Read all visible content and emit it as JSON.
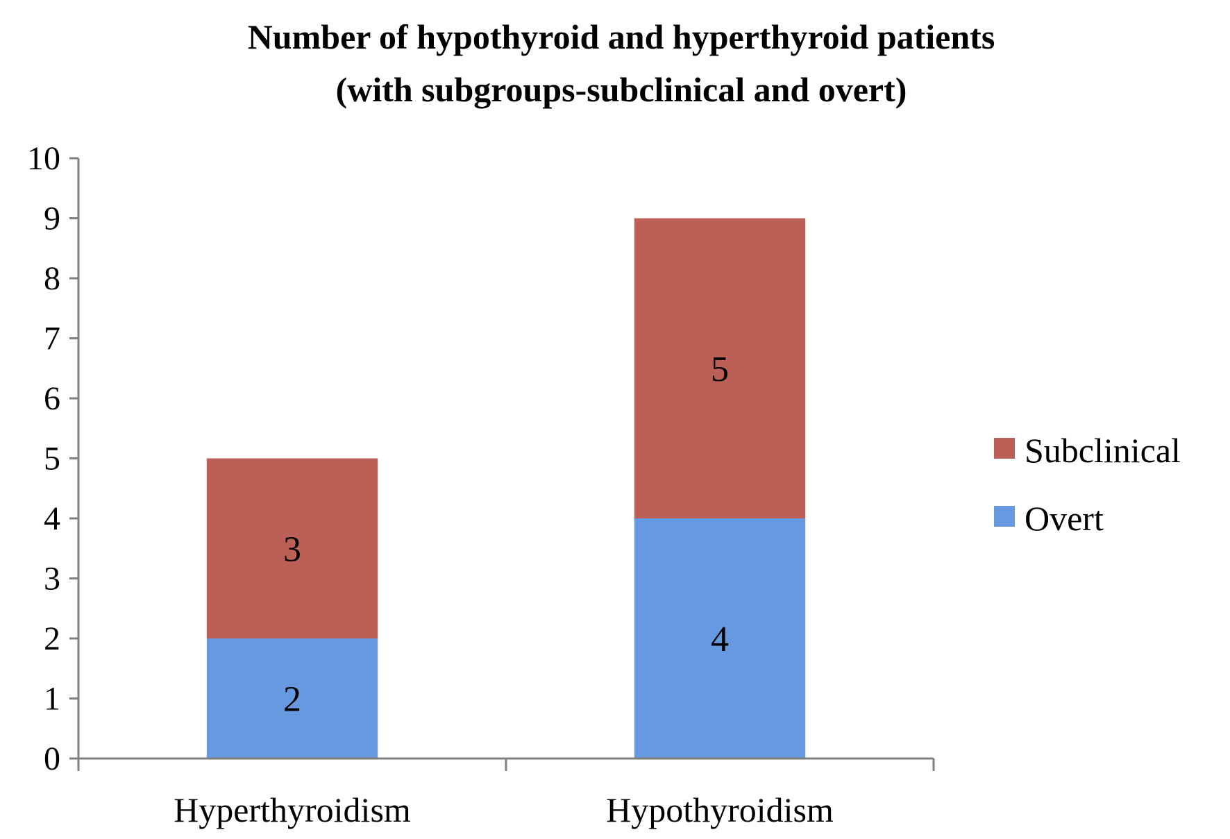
{
  "chart_data": {
    "type": "bar",
    "stacked": true,
    "title": "Number of hypothyroid and hyperthyroid patients",
    "subtitle": "(with subgroups-subclinical and overt)",
    "xlabel": "",
    "ylabel": "",
    "ylim": [
      0,
      10
    ],
    "yticks": [
      0,
      1,
      2,
      3,
      4,
      5,
      6,
      7,
      8,
      9,
      10
    ],
    "categories": [
      "Hyperthyroidism",
      "Hypothyroidism"
    ],
    "series": [
      {
        "name": "Overt",
        "values": [
          2,
          4
        ],
        "color": "#6699e0"
      },
      {
        "name": "Subclinical",
        "values": [
          3,
          5
        ],
        "color": "#bc6057"
      }
    ],
    "legend_order": [
      "Subclinical",
      "Overt"
    ],
    "legend_position": "right",
    "grid": false,
    "data_labels": true
  }
}
